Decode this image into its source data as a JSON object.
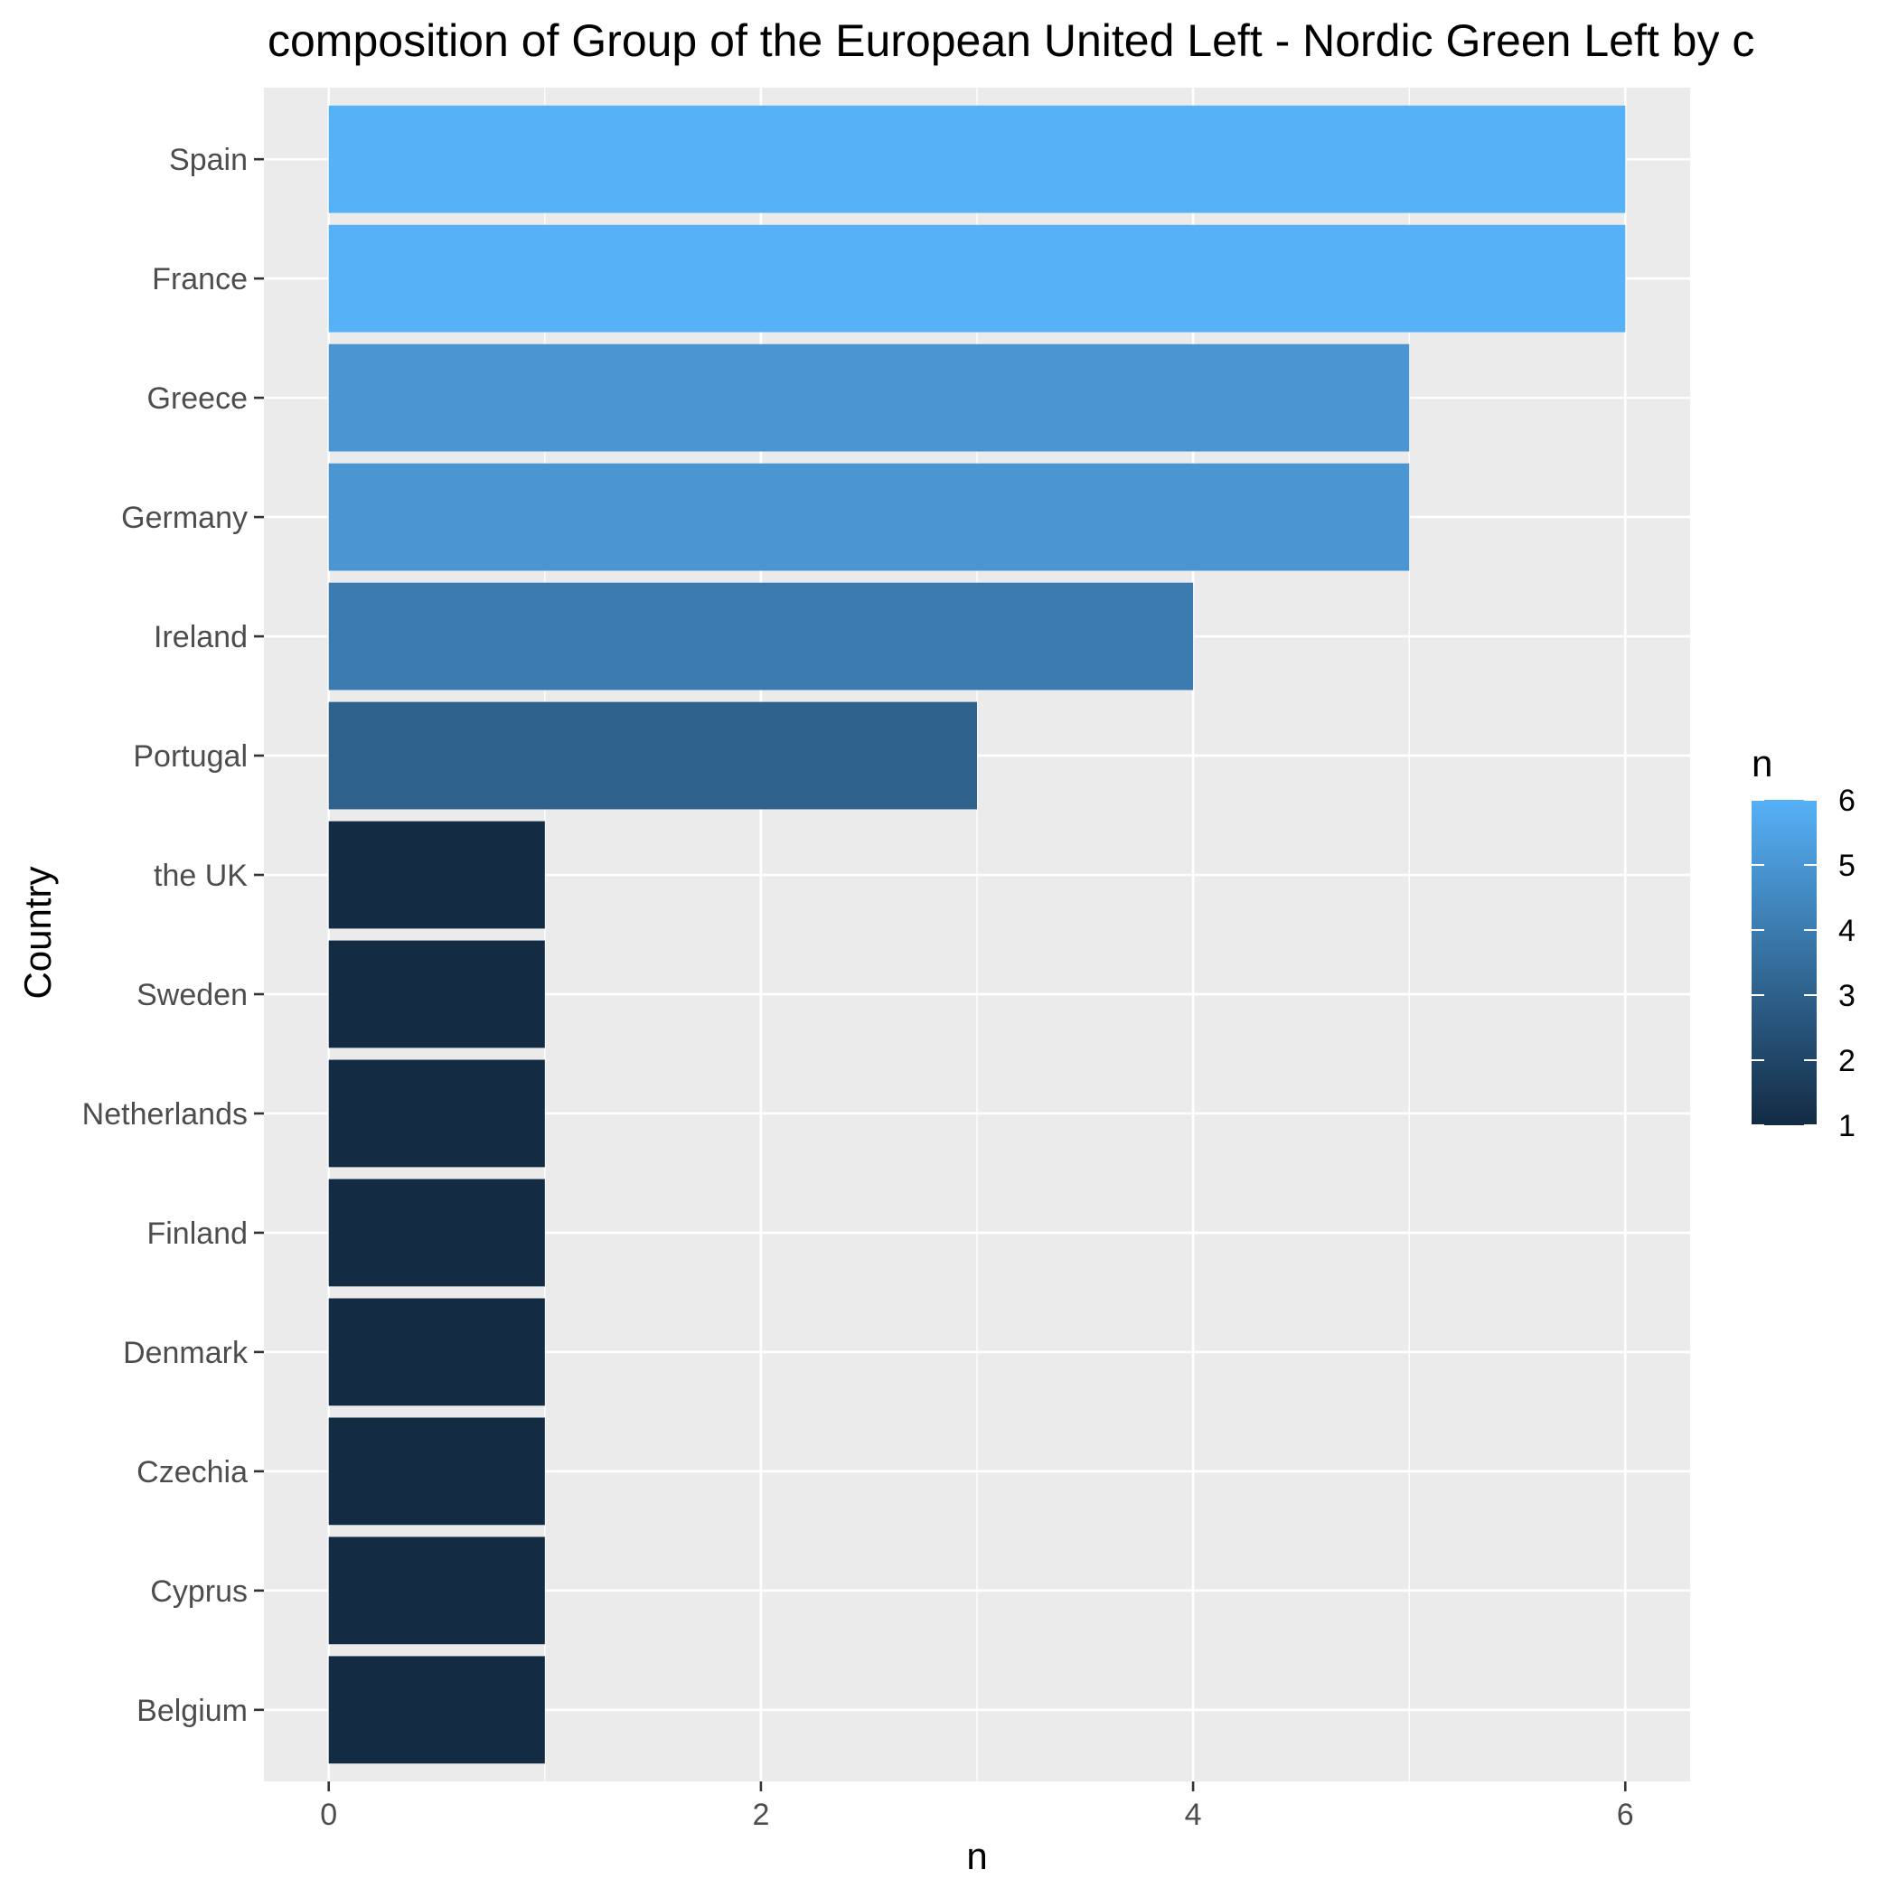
{
  "chart_data": {
    "type": "bar",
    "orientation": "horizontal",
    "title": "composition of Group of the European United Left - Nordic Green Left by c",
    "xlabel": "n",
    "ylabel": "Country",
    "categories": [
      "Spain",
      "France",
      "Greece",
      "Germany",
      "Ireland",
      "Portugal",
      "the UK",
      "Sweden",
      "Netherlands",
      "Finland",
      "Denmark",
      "Czechia",
      "Cyprus",
      "Belgium"
    ],
    "values": [
      6,
      6,
      5,
      5,
      4,
      3,
      1,
      1,
      1,
      1,
      1,
      1,
      1,
      1
    ],
    "xlim": [
      -0.3,
      6.3
    ],
    "x_ticks": [
      0,
      2,
      4,
      6
    ],
    "x_tick_labels": [
      "0",
      "2",
      "4",
      "6"
    ],
    "grid": true,
    "legend": {
      "title": "n",
      "position": "right",
      "type": "colorbar",
      "range": [
        1,
        6
      ],
      "ticks": [
        1,
        2,
        3,
        4,
        5,
        6
      ],
      "tick_labels": [
        "1",
        "2",
        "3",
        "4",
        "5",
        "6"
      ],
      "low_color": "#132b43",
      "high_color": "#56b1f7"
    }
  }
}
